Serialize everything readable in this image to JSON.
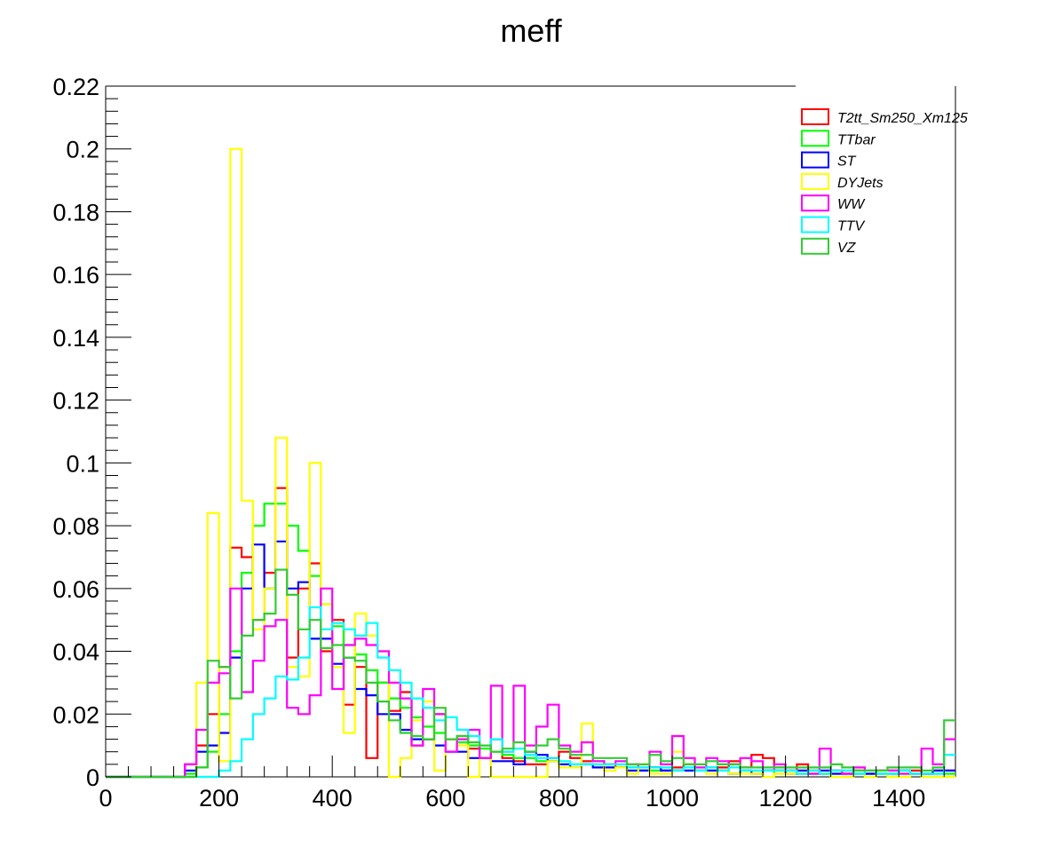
{
  "chart_data": {
    "type": "histogram-step",
    "title": "meff",
    "xlabel": "",
    "ylabel": "",
    "xlim": [
      0,
      1500
    ],
    "ylim": [
      0,
      0.22
    ],
    "x_ticks": [
      0,
      200,
      400,
      600,
      800,
      1000,
      1200,
      1400
    ],
    "x_tick_labels": [
      "0",
      "200",
      "400",
      "600",
      "800",
      "1000",
      "1200",
      "1400"
    ],
    "y_ticks": [
      0,
      0.02,
      0.04,
      0.06,
      0.08,
      0.1,
      0.12,
      0.14,
      0.16,
      0.18,
      0.2,
      0.22
    ],
    "y_tick_labels": [
      "0",
      "0.02",
      "0.04",
      "0.06",
      "0.08",
      "0.1",
      "0.12",
      "0.14",
      "0.16",
      "0.18",
      "0.2",
      "0.22"
    ],
    "bin_width": 20,
    "bin_start": 0,
    "grid": false,
    "legend_position": "top-right",
    "series": [
      {
        "name": "T2tt_Sm250_Xm125",
        "color": "#ff0000",
        "values": [
          0,
          0,
          0,
          0,
          0,
          0,
          0,
          0.004,
          0.01,
          0.02,
          0.035,
          0.073,
          0.07,
          0.05,
          0.065,
          0.092,
          0.038,
          0.06,
          0.068,
          0.04,
          0.05,
          0.023,
          0.035,
          0.006,
          0.03,
          0.021,
          0.027,
          0.01,
          0.012,
          0.02,
          0.012,
          0.013,
          0.009,
          0.006,
          0.012,
          0.006,
          0.005,
          0.004,
          0.004,
          0.006,
          0.008,
          0.006,
          0.005,
          0.005,
          0.004,
          0.003,
          0.003,
          0.002,
          0.003,
          0.002,
          0.003,
          0.004,
          0.002,
          0.003,
          0.003,
          0.005,
          0.003,
          0.007,
          0.006,
          0.003,
          0.002,
          0.004,
          0.002,
          0.001,
          0.002,
          0.001,
          0.002,
          0.001,
          0.002,
          0.002,
          0.002,
          0.002,
          0.001,
          0.002,
          0.002
        ]
      },
      {
        "name": "TTbar",
        "color": "#00ff00",
        "values": [
          0,
          0,
          0,
          0,
          0,
          0,
          0,
          0.001,
          0.003,
          0.008,
          0.02,
          0.04,
          0.065,
          0.08,
          0.087,
          0.087,
          0.08,
          0.072,
          0.064,
          0.055,
          0.048,
          0.042,
          0.039,
          0.034,
          0.03,
          0.025,
          0.022,
          0.019,
          0.016,
          0.014,
          0.012,
          0.011,
          0.01,
          0.009,
          0.008,
          0.007,
          0.006,
          0.006,
          0.005,
          0.005,
          0.004,
          0.004,
          0.004,
          0.003,
          0.003,
          0.003,
          0.003,
          0.002,
          0.002,
          0.002,
          0.002,
          0.002,
          0.002,
          0.002,
          0.002,
          0.001,
          0.002,
          0.001,
          0.002,
          0.001,
          0.001,
          0.001,
          0.001,
          0.001,
          0.001,
          0.001,
          0.001,
          0.001,
          0.001,
          0.001,
          0.001,
          0.001,
          0.001,
          0.001,
          0.001
        ]
      },
      {
        "name": "ST",
        "color": "#0000ff",
        "values": [
          0,
          0,
          0,
          0,
          0,
          0,
          0,
          0.002,
          0.008,
          0.01,
          0.014,
          0.038,
          0.06,
          0.074,
          0.06,
          0.075,
          0.06,
          0.062,
          0.044,
          0.044,
          0.036,
          0.038,
          0.028,
          0.026,
          0.02,
          0.02,
          0.015,
          0.012,
          0.012,
          0.01,
          0.008,
          0.008,
          0.006,
          0.006,
          0.005,
          0.005,
          0.004,
          0.008,
          0.007,
          0.005,
          0.004,
          0.003,
          0.004,
          0.003,
          0.003,
          0.003,
          0.002,
          0.002,
          0.003,
          0.002,
          0.002,
          0.002,
          0.002,
          0.002,
          0.002,
          0.001,
          0.002,
          0.001,
          0.002,
          0.002,
          0.001,
          0.002,
          0.001,
          0.002,
          0.001,
          0.001,
          0.001,
          0.001,
          0.001,
          0.001,
          0.002,
          0.001,
          0.001,
          0.002,
          0.002
        ]
      },
      {
        "name": "DYJets",
        "color": "#ffff00",
        "values": [
          0,
          0,
          0,
          0,
          0,
          0,
          0,
          0,
          0.03,
          0.084,
          0.005,
          0.2,
          0.088,
          0.047,
          0.06,
          0.108,
          0.035,
          0.032,
          0.1,
          0.055,
          0.035,
          0.014,
          0.052,
          0.045,
          0.04,
          0,
          0.006,
          0.018,
          0.024,
          0.002,
          0.012,
          0.01,
          0,
          0.006,
          0,
          0,
          0,
          0,
          0,
          0.005,
          0.003,
          0.003,
          0.017,
          0.005,
          0.002,
          0.003,
          0.001,
          0.004,
          0.001,
          0.001,
          0.008,
          0.004,
          0.002,
          0.001,
          0.002,
          0.001,
          0.001,
          0.001,
          0,
          0.001,
          0.001,
          0.001,
          0.001,
          0.001,
          0,
          0,
          0.001,
          0,
          0.001,
          0,
          0,
          0.001,
          0,
          0,
          0
        ]
      },
      {
        "name": "WW",
        "color": "#ff00ff",
        "values": [
          0,
          0,
          0,
          0,
          0,
          0,
          0,
          0.004,
          0.015,
          0.03,
          0.033,
          0.06,
          0.027,
          0.037,
          0.048,
          0.05,
          0.022,
          0.02,
          0.026,
          0.06,
          0.028,
          0.042,
          0.044,
          0.042,
          0.04,
          0.03,
          0.025,
          0.01,
          0.028,
          0.02,
          0.008,
          0.012,
          0.015,
          0.006,
          0.029,
          0.008,
          0.029,
          0.01,
          0.016,
          0.023,
          0.01,
          0.008,
          0.011,
          0.005,
          0.004,
          0.005,
          0.004,
          0.003,
          0.008,
          0.004,
          0.013,
          0.006,
          0.003,
          0.006,
          0.005,
          0.004,
          0.006,
          0.005,
          0.002,
          0.004,
          0.002,
          0.001,
          0.001,
          0.009,
          0.002,
          0.001,
          0.003,
          0.002,
          0.002,
          0.002,
          0.001,
          0.001,
          0.009,
          0.004,
          0.012
        ]
      },
      {
        "name": "TTV",
        "color": "#00ffff",
        "values": [
          0,
          0,
          0,
          0,
          0,
          0,
          0,
          0,
          0,
          0,
          0.002,
          0.005,
          0.012,
          0.02,
          0.025,
          0.032,
          0.031,
          0.038,
          0.054,
          0.047,
          0.049,
          0.047,
          0.045,
          0.049,
          0.038,
          0.034,
          0.03,
          0.025,
          0.022,
          0.018,
          0.019,
          0.015,
          0.013,
          0.01,
          0.012,
          0.008,
          0.009,
          0.007,
          0.006,
          0.006,
          0.005,
          0.004,
          0.004,
          0.004,
          0.004,
          0.004,
          0.003,
          0.003,
          0.003,
          0.003,
          0.002,
          0.003,
          0.002,
          0.003,
          0.002,
          0.003,
          0.002,
          0.002,
          0.002,
          0.002,
          0.002,
          0.001,
          0.002,
          0.001,
          0.002,
          0.002,
          0.001,
          0.002,
          0.001,
          0.001,
          0.002,
          0.001,
          0.001,
          0.001,
          0.007
        ]
      },
      {
        "name": "VZ",
        "color": "#33cc33",
        "values": [
          0,
          0,
          0,
          0,
          0,
          0,
          0,
          0,
          0.003,
          0.037,
          0.035,
          0.025,
          0.045,
          0.05,
          0.052,
          0.066,
          0.058,
          0.047,
          0.05,
          0.041,
          0.042,
          0.038,
          0.037,
          0.03,
          0.024,
          0.018,
          0.014,
          0.013,
          0.012,
          0.022,
          0.012,
          0.013,
          0.011,
          0.01,
          0.008,
          0.009,
          0.011,
          0.008,
          0.01,
          0.012,
          0.009,
          0.007,
          0.007,
          0.006,
          0.006,
          0.006,
          0.004,
          0.004,
          0.007,
          0.005,
          0.006,
          0.004,
          0.004,
          0.005,
          0.004,
          0.004,
          0.003,
          0.003,
          0.003,
          0.003,
          0.003,
          0.003,
          0.003,
          0.003,
          0.004,
          0.003,
          0.002,
          0.002,
          0.002,
          0.003,
          0.003,
          0.003,
          0.002,
          0.003,
          0.018
        ]
      }
    ]
  }
}
